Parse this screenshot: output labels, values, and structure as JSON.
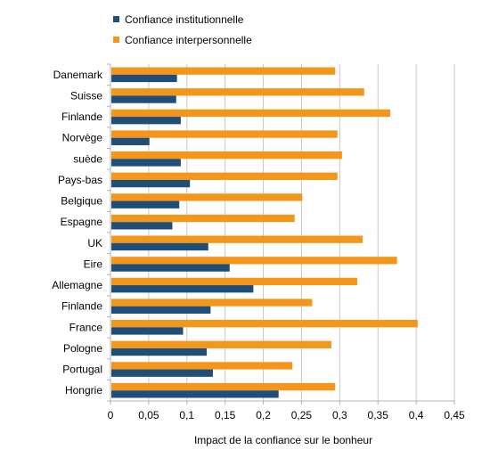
{
  "chart_data": {
    "type": "bar",
    "orientation": "horizontal",
    "categories": [
      "Danemark",
      "Suisse",
      "Finlande",
      "Norvège",
      "suède",
      "Pays-bas",
      "Belgique",
      "Espagne",
      "UK",
      "Eire",
      "Allemagne",
      "Finlande",
      "France",
      "Pologne",
      "Portugal",
      "Hongrie"
    ],
    "series": [
      {
        "name": "Confiance institutionnelle",
        "color": "#1f4e79",
        "values": [
          0.087,
          0.086,
          0.092,
          0.051,
          0.092,
          0.104,
          0.09,
          0.081,
          0.128,
          0.156,
          0.187,
          0.131,
          0.095,
          0.126,
          0.134,
          0.22
        ]
      },
      {
        "name": "Confiance interpersonnelle",
        "color": "#f39619",
        "values": [
          0.294,
          0.332,
          0.366,
          0.297,
          0.303,
          0.297,
          0.251,
          0.241,
          0.33,
          0.375,
          0.323,
          0.264,
          0.402,
          0.289,
          0.238,
          0.294
        ]
      }
    ],
    "xlabel": "Impact de la confiance sur le bonheur",
    "xlim": [
      0,
      0.45
    ],
    "xticks": [
      "0",
      "0,05",
      "0,1",
      "0,15",
      "0,2",
      "0,25",
      "0,3",
      "0,35",
      "0,4",
      "0,45"
    ],
    "grid": true,
    "legend_position": "top"
  }
}
